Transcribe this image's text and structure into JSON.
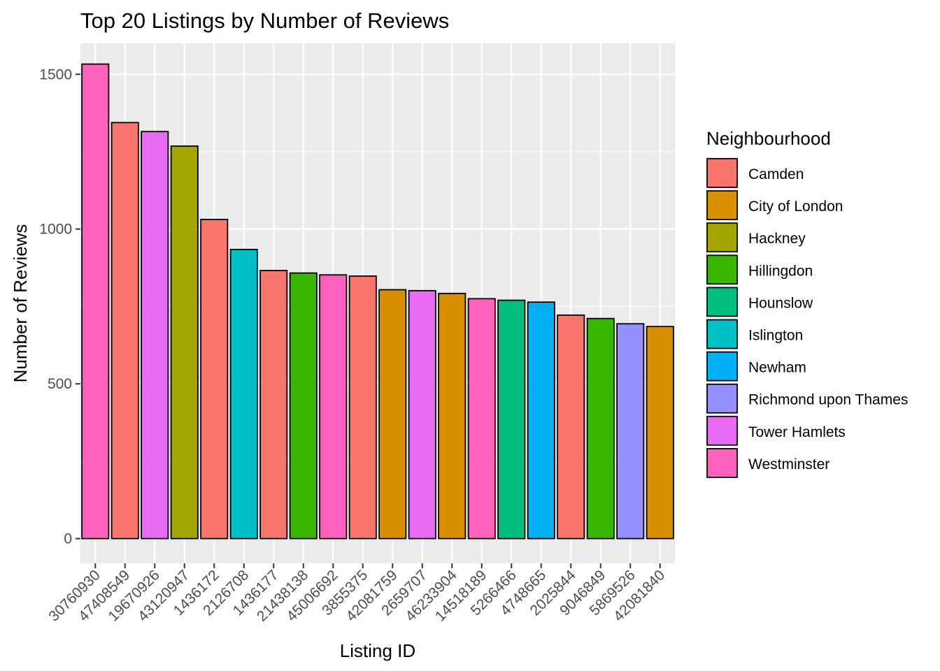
{
  "chart_data": {
    "type": "bar",
    "title": "Top 20 Listings by Number of Reviews",
    "xlabel": "Listing ID",
    "ylabel": "Number of Reviews",
    "ylim": [
      -80,
      1600
    ],
    "yticks": [
      0,
      500,
      1000,
      1500
    ],
    "grid": true,
    "legend_title": "Neighbourhood",
    "legend_position": "right",
    "legend": [
      {
        "name": "Camden",
        "color": "#F8766D"
      },
      {
        "name": "City of London",
        "color": "#D89000"
      },
      {
        "name": "Hackney",
        "color": "#A3A500"
      },
      {
        "name": "Hillingdon",
        "color": "#39B600"
      },
      {
        "name": "Hounslow",
        "color": "#00BF7D"
      },
      {
        "name": "Islington",
        "color": "#00BFC4"
      },
      {
        "name": "Newham",
        "color": "#00B0F6"
      },
      {
        "name": "Richmond upon Thames",
        "color": "#9590FF"
      },
      {
        "name": "Tower Hamlets",
        "color": "#E76BF3"
      },
      {
        "name": "Westminster",
        "color": "#FF62BC"
      }
    ],
    "categories": [
      "30760930",
      "47408549",
      "19670926",
      "43120947",
      "1436172",
      "2126708",
      "1436177",
      "21438138",
      "45006692",
      "3855375",
      "42081759",
      "2659707",
      "46233904",
      "14518189",
      "5266466",
      "4748665",
      "2025844",
      "9046849",
      "5869526",
      "42081840"
    ],
    "values": [
      1533,
      1344,
      1315,
      1268,
      1031,
      934,
      866,
      858,
      852,
      848,
      804,
      801,
      792,
      775,
      770,
      764,
      722,
      711,
      694,
      685
    ],
    "neighbourhoods": [
      "Westminster",
      "Camden",
      "Tower Hamlets",
      "Hackney",
      "Camden",
      "Islington",
      "Camden",
      "Hillingdon",
      "Westminster",
      "Camden",
      "City of London",
      "Tower Hamlets",
      "City of London",
      "Westminster",
      "Hounslow",
      "Newham",
      "Camden",
      "Hillingdon",
      "Richmond upon Thames",
      "City of London"
    ]
  }
}
